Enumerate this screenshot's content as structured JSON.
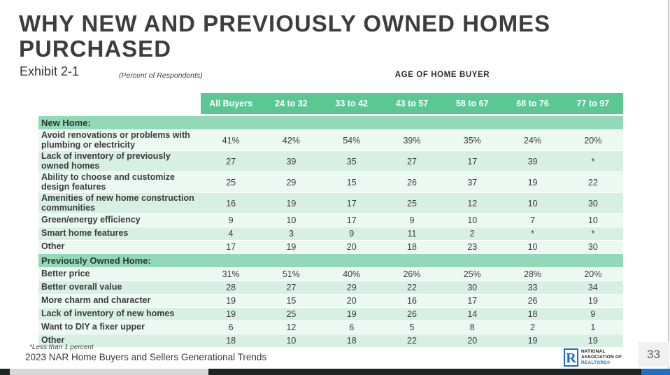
{
  "slide": {
    "title_line1": "WHY NEW AND PREVIOUSLY OWNED HOMES",
    "title_line2": "PURCHASED",
    "exhibit": "Exhibit 2-1",
    "percent_note": "(Percent of Respondents)",
    "age_header": "AGE OF HOME BUYER"
  },
  "table": {
    "columns": [
      "All Buyers",
      "24 to 32",
      "33 to 42",
      "43 to 57",
      "58 to 67",
      "68 to 76",
      "77 to 97"
    ],
    "sections": [
      {
        "label": "New Home:",
        "rows": [
          {
            "label": "Avoid renovations or problems with plumbing or electricity",
            "values": [
              "41%",
              "42%",
              "54%",
              "39%",
              "35%",
              "24%",
              "20%"
            ]
          },
          {
            "label": "Lack of inventory of previously owned homes",
            "values": [
              "27",
              "39",
              "35",
              "27",
              "17",
              "39",
              "*"
            ]
          },
          {
            "label": "Ability to choose and customize design features",
            "values": [
              "25",
              "29",
              "15",
              "26",
              "37",
              "19",
              "22"
            ]
          },
          {
            "label": "Amenities of new home construction communities",
            "values": [
              "16",
              "19",
              "17",
              "25",
              "12",
              "10",
              "30"
            ]
          },
          {
            "label": "Green/energy efficiency",
            "values": [
              "9",
              "10",
              "17",
              "9",
              "10",
              "7",
              "10"
            ]
          },
          {
            "label": "Smart home features",
            "values": [
              "4",
              "3",
              "9",
              "11",
              "2",
              "*",
              "*"
            ]
          },
          {
            "label": "Other",
            "values": [
              "17",
              "19",
              "20",
              "18",
              "23",
              "10",
              "30"
            ]
          }
        ]
      },
      {
        "label": "Previously Owned Home:",
        "rows": [
          {
            "label": "Better price",
            "values": [
              "31%",
              "51%",
              "40%",
              "26%",
              "25%",
              "28%",
              "20%"
            ]
          },
          {
            "label": "Better overall value",
            "values": [
              "28",
              "27",
              "29",
              "22",
              "30",
              "33",
              "34"
            ]
          },
          {
            "label": "More charm and character",
            "values": [
              "19",
              "15",
              "20",
              "16",
              "17",
              "26",
              "19"
            ]
          },
          {
            "label": "Lack of inventory of new homes",
            "values": [
              "19",
              "25",
              "19",
              "26",
              "14",
              "18",
              "9"
            ]
          },
          {
            "label": "Want to DIY a fixer upper",
            "values": [
              "6",
              "12",
              "6",
              "5",
              "8",
              "2",
              "1"
            ]
          },
          {
            "label": "Other",
            "values": [
              "18",
              "10",
              "18",
              "22",
              "20",
              "19",
              "19"
            ]
          }
        ]
      }
    ]
  },
  "footer": {
    "footnote": "*Less than 1 percent",
    "source": "2023 NAR Home Buyers and Sellers Generational Trends",
    "page_number": "33",
    "logo": {
      "mark": "R",
      "line1": "NATIONAL",
      "line2": "ASSOCIATION OF",
      "line3": "REALTORS®"
    }
  },
  "colors": {
    "header_green": "#5bc894",
    "section_green": "#92dab7",
    "row_light": "#ecf8f2",
    "row_dark": "#d8efe4",
    "text_dark": "#3d3d3d",
    "nar_blue": "#186fc0",
    "bar_dark": "#1f2724",
    "bar_light": "#d8d8d8",
    "bar_blue": "#1d70c5",
    "edge_line": "#c9c9c9"
  }
}
